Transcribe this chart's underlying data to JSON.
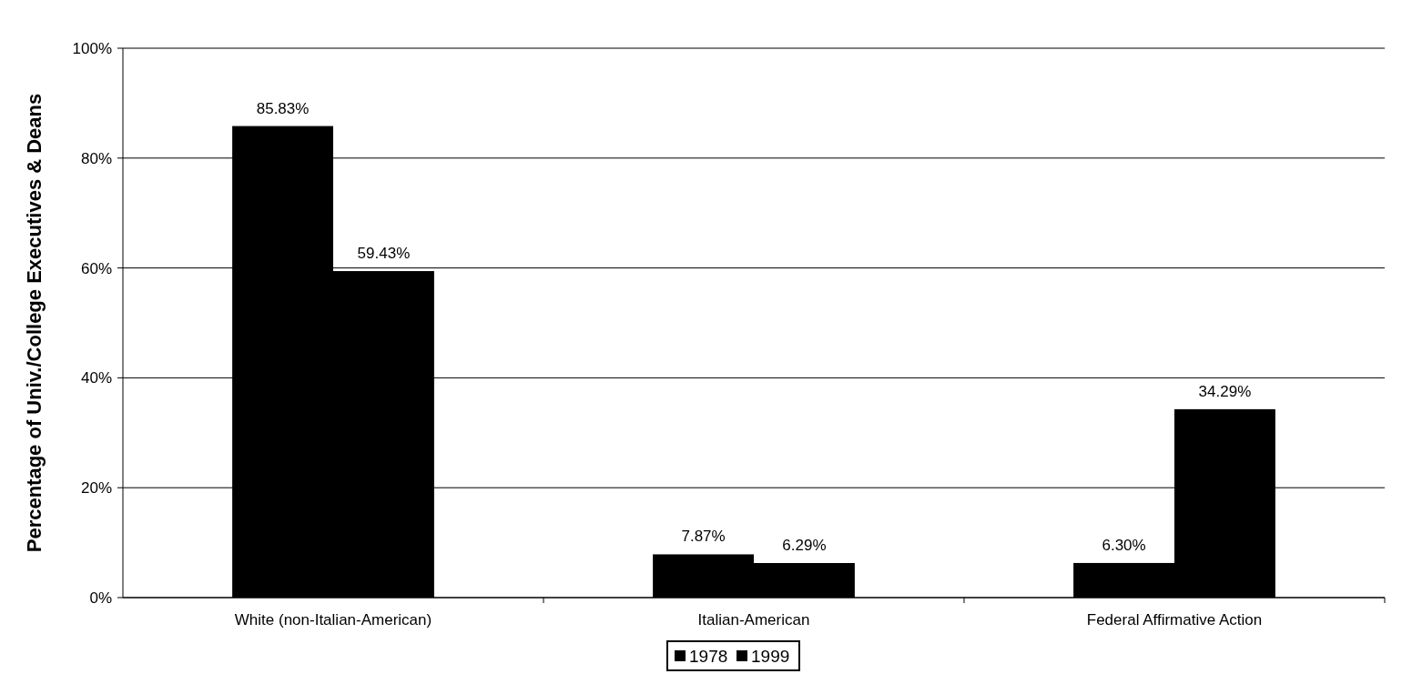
{
  "chart_data": {
    "type": "bar",
    "ylabel": "Percentage of Univ./College Executives & Deans",
    "categories": [
      "White (non-Italian-American)",
      "Italian-American",
      "Federal Affirmative Action"
    ],
    "series": [
      {
        "name": "1978",
        "color": "#000000",
        "values": [
          85.83,
          7.87,
          6.3
        ],
        "value_labels": [
          "85.83%",
          "7.87%",
          "6.30%"
        ]
      },
      {
        "name": "1999",
        "color": "#000000",
        "values": [
          59.43,
          6.29,
          34.29
        ],
        "value_labels": [
          "59.43%",
          "6.29%",
          "34.29%"
        ]
      }
    ],
    "ylim": [
      0,
      100
    ],
    "yticks": [
      {
        "value": 0,
        "label": "0%"
      },
      {
        "value": 20,
        "label": "20%"
      },
      {
        "value": 40,
        "label": "40%"
      },
      {
        "value": 60,
        "label": "60%"
      },
      {
        "value": 80,
        "label": "80%"
      },
      {
        "value": 100,
        "label": "100%"
      }
    ],
    "grid": "y",
    "legend": "bottom"
  }
}
